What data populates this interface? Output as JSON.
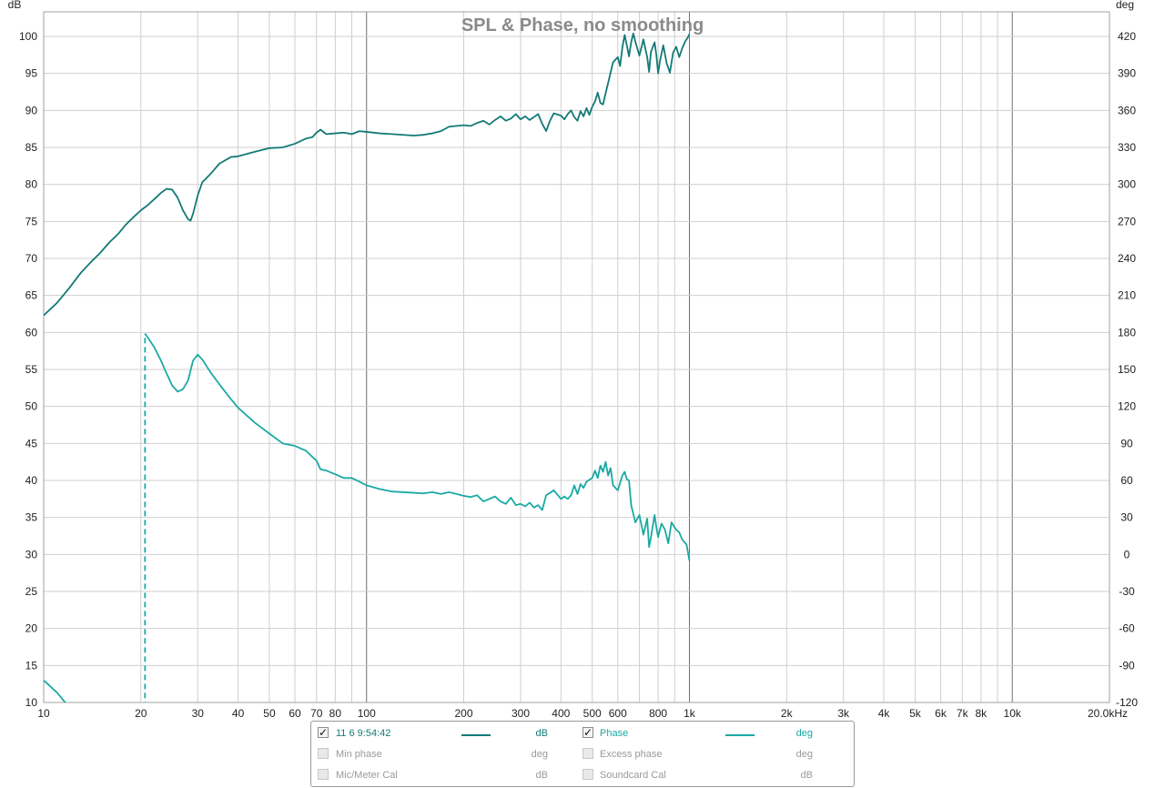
{
  "chart_data": {
    "type": "line",
    "title": "SPL & Phase, no smoothing",
    "x_scale": "log",
    "xlim": [
      10,
      20000
    ],
    "x_ticks": [
      {
        "v": 10,
        "label": "10"
      },
      {
        "v": 20,
        "label": "20"
      },
      {
        "v": 30,
        "label": "30"
      },
      {
        "v": 40,
        "label": "40"
      },
      {
        "v": 50,
        "label": "50"
      },
      {
        "v": 60,
        "label": "60"
      },
      {
        "v": 70,
        "label": "70"
      },
      {
        "v": 80,
        "label": "80"
      },
      {
        "v": 100,
        "label": "100"
      },
      {
        "v": 200,
        "label": "200"
      },
      {
        "v": 300,
        "label": "300"
      },
      {
        "v": 400,
        "label": "400"
      },
      {
        "v": 500,
        "label": "500"
      },
      {
        "v": 600,
        "label": "600"
      },
      {
        "v": 800,
        "label": "800"
      },
      {
        "v": 1000,
        "label": "1k"
      },
      {
        "v": 2000,
        "label": "2k"
      },
      {
        "v": 3000,
        "label": "3k"
      },
      {
        "v": 4000,
        "label": "4k"
      },
      {
        "v": 5000,
        "label": "5k"
      },
      {
        "v": 6000,
        "label": "6k"
      },
      {
        "v": 7000,
        "label": "7k"
      },
      {
        "v": 8000,
        "label": "8k"
      },
      {
        "v": 10000,
        "label": "10k"
      },
      {
        "v": 20000,
        "label": "20.0kHz"
      }
    ],
    "y_left": {
      "unit": "dB",
      "lim": [
        10,
        100
      ],
      "ticks": [
        "100",
        "95",
        "90",
        "85",
        "80",
        "75",
        "70",
        "65",
        "60",
        "55",
        "50",
        "45",
        "40",
        "35",
        "30",
        "25",
        "20",
        "15",
        "10"
      ]
    },
    "y_right": {
      "unit": "deg",
      "lim": [
        -120,
        420
      ],
      "ticks": [
        "420",
        "390",
        "360",
        "330",
        "300",
        "270",
        "240",
        "210",
        "180",
        "150",
        "120",
        "90",
        "60",
        "30",
        "0",
        "-30",
        "-60",
        "-90",
        "-120"
      ]
    },
    "grid": true,
    "series": [
      {
        "name": "11 6 9:54:42",
        "axis": "left",
        "unit": "dB",
        "color": "#137a78",
        "points": [
          [
            10,
            62.3
          ],
          [
            11,
            64
          ],
          [
            12,
            66
          ],
          [
            13,
            68
          ],
          [
            14,
            69.5
          ],
          [
            15,
            70.8
          ],
          [
            16,
            72.2
          ],
          [
            17,
            73.3
          ],
          [
            18,
            74.6
          ],
          [
            19,
            75.6
          ],
          [
            20,
            76.5
          ],
          [
            21,
            77.2
          ],
          [
            22,
            78
          ],
          [
            23,
            78.8
          ],
          [
            24,
            79.4
          ],
          [
            25,
            79.3
          ],
          [
            26,
            78.2
          ],
          [
            27,
            76.5
          ],
          [
            28,
            75.3
          ],
          [
            28.5,
            75.1
          ],
          [
            29,
            76
          ],
          [
            30,
            78.5
          ],
          [
            31,
            80.3
          ],
          [
            33,
            81.5
          ],
          [
            35,
            82.8
          ],
          [
            38,
            83.7
          ],
          [
            40,
            83.8
          ],
          [
            45,
            84.4
          ],
          [
            50,
            84.9
          ],
          [
            55,
            85
          ],
          [
            60,
            85.5
          ],
          [
            65,
            86.2
          ],
          [
            68,
            86.4
          ],
          [
            70,
            87
          ],
          [
            72,
            87.4
          ],
          [
            75,
            86.8
          ],
          [
            80,
            86.9
          ],
          [
            85,
            87
          ],
          [
            90,
            86.8
          ],
          [
            95,
            87.2
          ],
          [
            100,
            87.1
          ],
          [
            110,
            86.9
          ],
          [
            120,
            86.8
          ],
          [
            140,
            86.6
          ],
          [
            150,
            86.7
          ],
          [
            160,
            86.9
          ],
          [
            170,
            87.2
          ],
          [
            180,
            87.8
          ],
          [
            200,
            88
          ],
          [
            210,
            87.9
          ],
          [
            220,
            88.3
          ],
          [
            230,
            88.6
          ],
          [
            240,
            88.1
          ],
          [
            250,
            88.7
          ],
          [
            260,
            89.2
          ],
          [
            270,
            88.6
          ],
          [
            280,
            88.9
          ],
          [
            290,
            89.5
          ],
          [
            300,
            88.8
          ],
          [
            310,
            89.2
          ],
          [
            320,
            88.7
          ],
          [
            340,
            89.5
          ],
          [
            350,
            88.2
          ],
          [
            360,
            87.2
          ],
          [
            370,
            88.6
          ],
          [
            380,
            89.6
          ],
          [
            400,
            89.3
          ],
          [
            410,
            88.8
          ],
          [
            420,
            89.5
          ],
          [
            430,
            90
          ],
          [
            440,
            89.1
          ],
          [
            450,
            88.6
          ],
          [
            460,
            89.9
          ],
          [
            470,
            89.2
          ],
          [
            480,
            90.3
          ],
          [
            490,
            89.4
          ],
          [
            500,
            90.5
          ],
          [
            510,
            91.2
          ],
          [
            520,
            92.4
          ],
          [
            530,
            91
          ],
          [
            540,
            90.8
          ],
          [
            550,
            92.3
          ],
          [
            560,
            93.7
          ],
          [
            580,
            96.5
          ],
          [
            600,
            97.2
          ],
          [
            610,
            96
          ],
          [
            620,
            98.5
          ],
          [
            630,
            100.2
          ],
          [
            640,
            98.8
          ],
          [
            650,
            97.3
          ],
          [
            660,
            99.2
          ],
          [
            670,
            100.4
          ],
          [
            680,
            99.3
          ],
          [
            700,
            97.4
          ],
          [
            710,
            98.5
          ],
          [
            720,
            99.6
          ],
          [
            740,
            97.2
          ],
          [
            750,
            95.2
          ],
          [
            760,
            97.9
          ],
          [
            780,
            99.2
          ],
          [
            790,
            97.5
          ],
          [
            800,
            95
          ],
          [
            810,
            96.6
          ],
          [
            830,
            98.8
          ],
          [
            850,
            96.4
          ],
          [
            870,
            95.1
          ],
          [
            890,
            97.8
          ],
          [
            910,
            98.6
          ],
          [
            930,
            97.2
          ],
          [
            950,
            98.4
          ],
          [
            970,
            99.3
          ],
          [
            990,
            99.9
          ],
          [
            1000,
            100.3
          ]
        ]
      },
      {
        "name": "Phase",
        "axis": "right",
        "unit": "deg",
        "color": "#1aa9a4",
        "points": [
          [
            10,
            -102
          ],
          [
            11,
            -112
          ],
          [
            12,
            -124
          ],
          [
            20.6,
            179
          ],
          [
            21,
            176
          ],
          [
            22,
            168
          ],
          [
            23,
            158
          ],
          [
            24,
            147
          ],
          [
            25,
            137
          ],
          [
            26,
            132
          ],
          [
            27,
            134
          ],
          [
            28,
            141
          ],
          [
            29,
            157
          ],
          [
            30,
            162
          ],
          [
            31,
            158
          ],
          [
            33,
            147
          ],
          [
            35,
            138
          ],
          [
            38,
            126
          ],
          [
            40,
            119
          ],
          [
            45,
            107
          ],
          [
            50,
            98
          ],
          [
            55,
            90
          ],
          [
            60,
            88
          ],
          [
            65,
            84
          ],
          [
            68,
            79
          ],
          [
            70,
            76
          ],
          [
            72,
            69
          ],
          [
            75,
            68
          ],
          [
            80,
            65
          ],
          [
            85,
            62
          ],
          [
            90,
            62
          ],
          [
            95,
            59
          ],
          [
            100,
            56
          ],
          [
            110,
            53
          ],
          [
            120,
            51
          ],
          [
            140,
            50
          ],
          [
            150,
            49.5
          ],
          [
            160,
            50.5
          ],
          [
            170,
            49
          ],
          [
            180,
            50.5
          ],
          [
            190,
            49
          ],
          [
            200,
            47.5
          ],
          [
            210,
            46.5
          ],
          [
            220,
            48
          ],
          [
            230,
            43
          ],
          [
            240,
            45
          ],
          [
            250,
            47
          ],
          [
            260,
            43
          ],
          [
            270,
            41
          ],
          [
            280,
            46
          ],
          [
            290,
            40
          ],
          [
            300,
            41
          ],
          [
            310,
            39
          ],
          [
            320,
            42
          ],
          [
            330,
            38
          ],
          [
            340,
            40
          ],
          [
            350,
            36
          ],
          [
            360,
            48
          ],
          [
            370,
            50
          ],
          [
            380,
            52
          ],
          [
            400,
            45
          ],
          [
            410,
            47
          ],
          [
            420,
            45
          ],
          [
            430,
            48
          ],
          [
            440,
            56
          ],
          [
            450,
            49
          ],
          [
            460,
            57
          ],
          [
            470,
            54
          ],
          [
            480,
            59
          ],
          [
            500,
            62
          ],
          [
            510,
            68
          ],
          [
            520,
            62
          ],
          [
            530,
            72
          ],
          [
            540,
            67
          ],
          [
            550,
            75
          ],
          [
            560,
            64
          ],
          [
            570,
            70
          ],
          [
            580,
            56
          ],
          [
            600,
            52
          ],
          [
            620,
            64
          ],
          [
            630,
            67
          ],
          [
            640,
            61
          ],
          [
            650,
            60
          ],
          [
            660,
            40
          ],
          [
            680,
            26
          ],
          [
            700,
            32
          ],
          [
            710,
            24
          ],
          [
            720,
            16
          ],
          [
            740,
            29
          ],
          [
            750,
            6
          ],
          [
            760,
            14
          ],
          [
            780,
            32
          ],
          [
            790,
            22
          ],
          [
            800,
            14
          ],
          [
            810,
            20
          ],
          [
            820,
            25
          ],
          [
            840,
            20
          ],
          [
            860,
            9
          ],
          [
            880,
            26
          ],
          [
            890,
            24
          ],
          [
            910,
            20
          ],
          [
            930,
            18
          ],
          [
            950,
            12
          ],
          [
            980,
            8
          ],
          [
            1000,
            -5
          ]
        ]
      }
    ],
    "phase_wrap": {
      "freq": 20.6,
      "from_deg": -124,
      "to_deg": 179,
      "style": "dashed"
    }
  },
  "legend": {
    "rows": [
      [
        {
          "label": "11 6 9:54:42",
          "checked": true,
          "enabled": true,
          "color": "#137a78",
          "unit": "dB"
        },
        {
          "label": "Phase",
          "checked": true,
          "enabled": true,
          "color": "#1aa9a4",
          "unit": "deg"
        }
      ],
      [
        {
          "label": "Min phase",
          "checked": false,
          "enabled": false,
          "color": "",
          "unit": "deg"
        },
        {
          "label": "Excess phase",
          "checked": false,
          "enabled": false,
          "color": "",
          "unit": "deg"
        }
      ],
      [
        {
          "label": "Mic/Meter Cal",
          "checked": false,
          "enabled": false,
          "color": "",
          "unit": "dB"
        },
        {
          "label": "Soundcard Cal",
          "checked": false,
          "enabled": false,
          "color": "",
          "unit": "dB"
        }
      ]
    ],
    "check_mark": "✓"
  }
}
